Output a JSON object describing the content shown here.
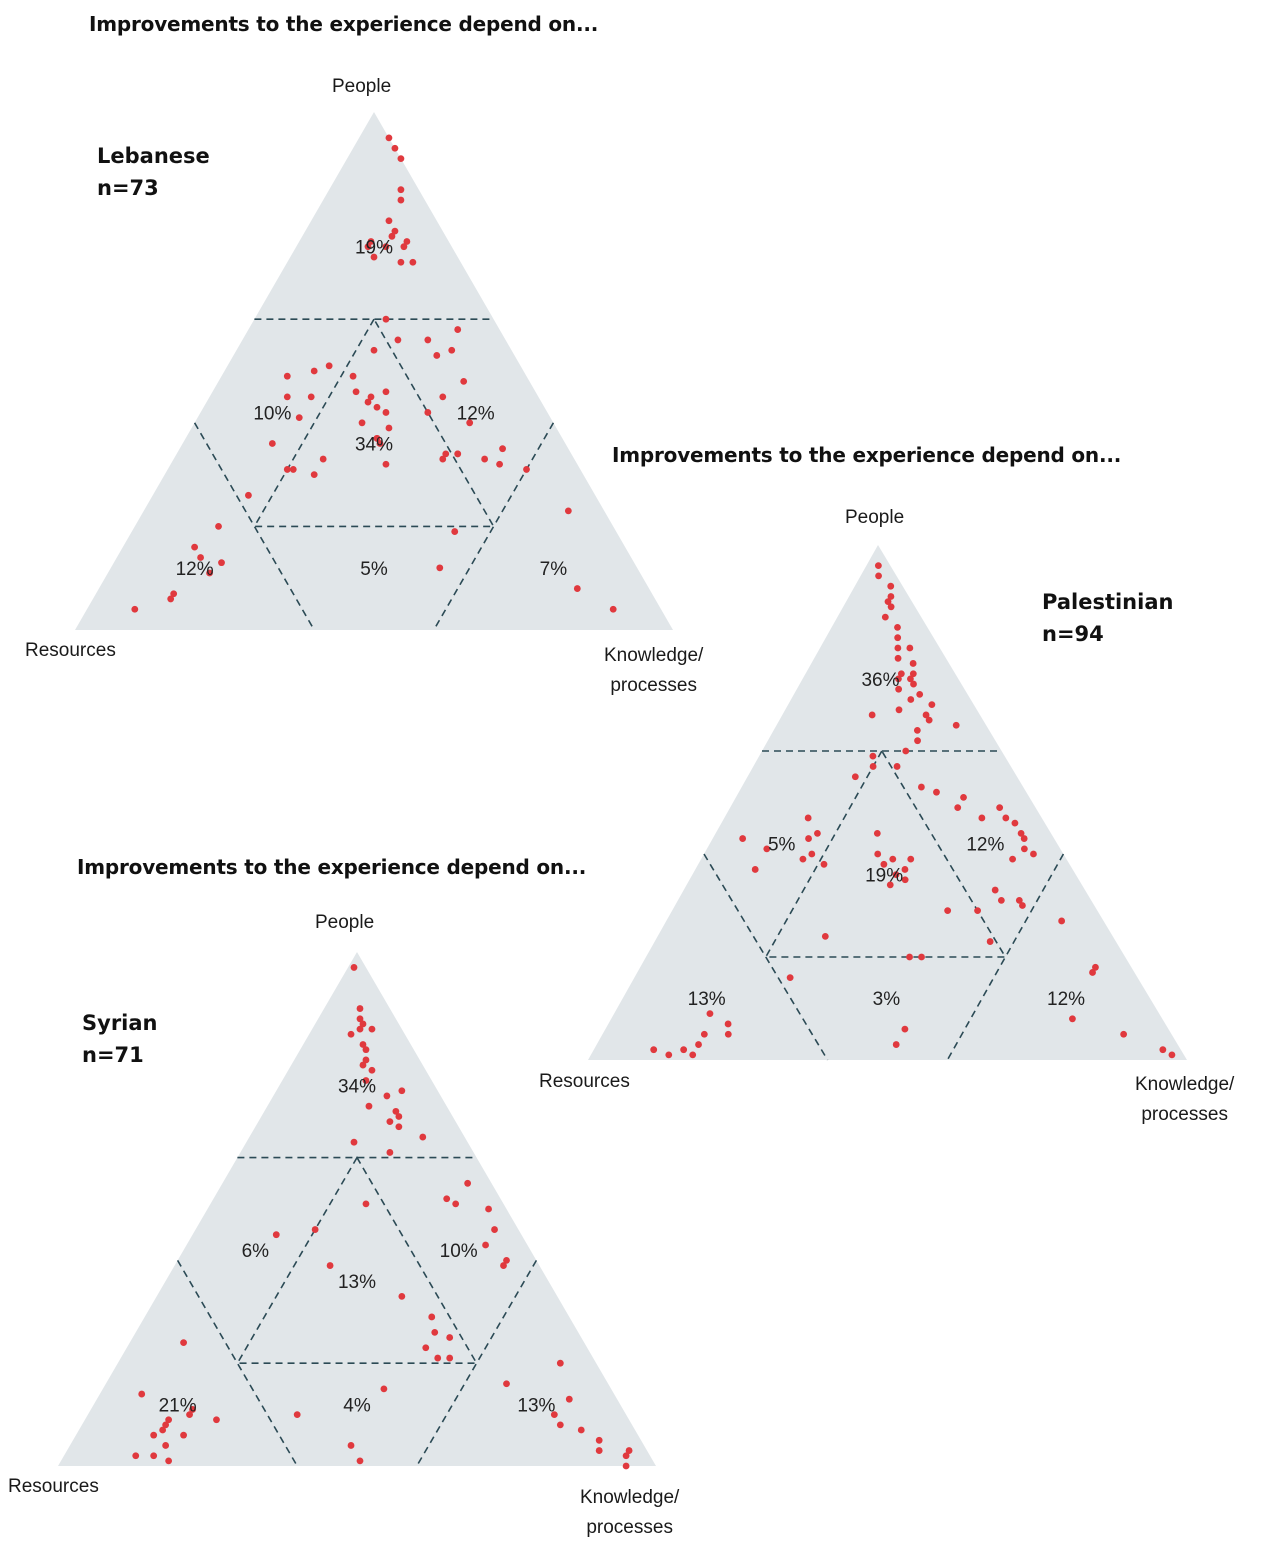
{
  "chart_data": [
    {
      "type": "ternary-scatter",
      "title": "Improvements to the experience depend on...",
      "group": "Lebanese",
      "n_label": "n=73",
      "vertex_labels": {
        "top": "People",
        "left": "Resources",
        "right_line1": "Knowledge/",
        "right_line2": "processes"
      },
      "colors": {
        "triangle": "#e1e6e9",
        "dots": "#e0393e",
        "divider": "#2b4a55"
      },
      "regions": [
        {
          "id": "people",
          "label": "19%"
        },
        {
          "id": "people-resources",
          "label": "10%"
        },
        {
          "id": "people-knowledge",
          "label": "12%"
        },
        {
          "id": "center",
          "label": "34%"
        },
        {
          "id": "resources",
          "label": "12%"
        },
        {
          "id": "resources-knowledge",
          "label": "5%"
        },
        {
          "id": "knowledge",
          "label": "7%"
        }
      ],
      "points": [
        [
          0.95,
          0.0,
          0.05
        ],
        [
          0.91,
          0.0,
          0.09
        ],
        [
          0.93,
          0.0,
          0.07
        ],
        [
          0.85,
          0.03,
          0.12
        ],
        [
          0.83,
          0.04,
          0.13
        ],
        [
          0.79,
          0.08,
          0.13
        ],
        [
          0.77,
          0.08,
          0.15
        ],
        [
          0.76,
          0.09,
          0.15
        ],
        [
          0.74,
          0.11,
          0.15
        ],
        [
          0.75,
          0.07,
          0.18
        ],
        [
          0.74,
          0.08,
          0.18
        ],
        [
          0.71,
          0.1,
          0.19
        ],
        [
          0.71,
          0.08,
          0.21
        ],
        [
          0.72,
          0.14,
          0.14
        ],
        [
          0.75,
          0.13,
          0.12
        ],
        [
          0.74,
          0.14,
          0.12
        ],
        [
          0.6,
          0.18,
          0.22
        ],
        [
          0.56,
          0.18,
          0.26
        ],
        [
          0.54,
          0.23,
          0.23
        ],
        [
          0.49,
          0.29,
          0.22
        ],
        [
          0.46,
          0.3,
          0.24
        ],
        [
          0.45,
          0.28,
          0.27
        ],
        [
          0.46,
          0.25,
          0.29
        ],
        [
          0.43,
          0.28,
          0.29
        ],
        [
          0.42,
          0.27,
          0.31
        ],
        [
          0.44,
          0.29,
          0.27
        ],
        [
          0.4,
          0.32,
          0.28
        ],
        [
          0.39,
          0.28,
          0.33
        ],
        [
          0.37,
          0.31,
          0.32
        ],
        [
          0.36,
          0.31,
          0.33
        ],
        [
          0.32,
          0.32,
          0.36
        ],
        [
          0.49,
          0.4,
          0.11
        ],
        [
          0.5,
          0.35,
          0.15
        ],
        [
          0.45,
          0.42,
          0.13
        ],
        [
          0.41,
          0.42,
          0.17
        ],
        [
          0.36,
          0.49,
          0.15
        ],
        [
          0.31,
          0.49,
          0.2
        ],
        [
          0.31,
          0.48,
          0.21
        ],
        [
          0.3,
          0.45,
          0.25
        ],
        [
          0.33,
          0.42,
          0.25
        ],
        [
          0.26,
          0.58,
          0.16
        ],
        [
          0.2,
          0.66,
          0.14
        ],
        [
          0.16,
          0.72,
          0.12
        ],
        [
          0.14,
          0.72,
          0.14
        ],
        [
          0.13,
          0.69,
          0.18
        ],
        [
          0.11,
          0.72,
          0.17
        ],
        [
          0.07,
          0.8,
          0.13
        ],
        [
          0.06,
          0.81,
          0.13
        ],
        [
          0.04,
          0.88,
          0.08
        ],
        [
          0.53,
          0.13,
          0.34
        ],
        [
          0.56,
          0.13,
          0.31
        ],
        [
          0.54,
          0.1,
          0.36
        ],
        [
          0.58,
          0.07,
          0.35
        ],
        [
          0.48,
          0.11,
          0.41
        ],
        [
          0.45,
          0.16,
          0.39
        ],
        [
          0.42,
          0.2,
          0.38
        ],
        [
          0.34,
          0.19,
          0.47
        ],
        [
          0.33,
          0.15,
          0.52
        ],
        [
          0.32,
          0.13,
          0.55
        ],
        [
          0.35,
          0.11,
          0.54
        ],
        [
          0.34,
          0.21,
          0.45
        ],
        [
          0.34,
          0.19,
          0.47
        ],
        [
          0.4,
          0.14,
          0.46
        ],
        [
          0.33,
          0.22,
          0.45
        ],
        [
          0.31,
          0.09,
          0.6
        ],
        [
          0.19,
          0.27,
          0.54
        ],
        [
          0.23,
          0.06,
          0.71
        ],
        [
          0.08,
          0.12,
          0.8
        ],
        [
          0.04,
          0.08,
          0.88
        ],
        [
          0.12,
          0.33,
          0.55
        ],
        [
          0.37,
          0.31,
          0.32
        ],
        [
          0.45,
          0.38,
          0.17
        ],
        [
          0.51,
          0.32,
          0.17
        ]
      ]
    },
    {
      "type": "ternary-scatter",
      "title": "Improvements to the experience depend on...",
      "group": "Palestinian",
      "n_label": "n=94",
      "vertex_labels": {
        "top": "People",
        "left": "Resources",
        "right_line1": "Knowledge/",
        "right_line2": "processes"
      },
      "colors": {
        "triangle": "#e1e6e9",
        "dots": "#e0393e",
        "divider": "#2b4a55"
      },
      "regions": [
        {
          "id": "people",
          "label": "36%"
        },
        {
          "id": "people-resources",
          "label": "5%"
        },
        {
          "id": "people-knowledge",
          "label": "12%"
        },
        {
          "id": "center",
          "label": "19%"
        },
        {
          "id": "resources",
          "label": "13%"
        },
        {
          "id": "resources-knowledge",
          "label": "3%"
        },
        {
          "id": "knowledge",
          "label": "12%"
        }
      ],
      "points": [
        [
          0.96,
          0.02,
          0.02
        ],
        [
          0.94,
          0.03,
          0.03
        ],
        [
          0.92,
          0.02,
          0.06
        ],
        [
          0.9,
          0.03,
          0.07
        ],
        [
          0.89,
          0.04,
          0.07
        ],
        [
          0.88,
          0.04,
          0.08
        ],
        [
          0.86,
          0.06,
          0.08
        ],
        [
          0.84,
          0.05,
          0.11
        ],
        [
          0.82,
          0.06,
          0.12
        ],
        [
          0.8,
          0.07,
          0.13
        ],
        [
          0.8,
          0.05,
          0.15
        ],
        [
          0.78,
          0.08,
          0.14
        ],
        [
          0.77,
          0.06,
          0.17
        ],
        [
          0.75,
          0.09,
          0.16
        ],
        [
          0.75,
          0.07,
          0.18
        ],
        [
          0.74,
          0.08,
          0.18
        ],
        [
          0.74,
          0.1,
          0.16
        ],
        [
          0.73,
          0.08,
          0.19
        ],
        [
          0.72,
          0.11,
          0.17
        ],
        [
          0.71,
          0.08,
          0.21
        ],
        [
          0.7,
          0.1,
          0.2
        ],
        [
          0.69,
          0.07,
          0.24
        ],
        [
          0.68,
          0.13,
          0.19
        ],
        [
          0.67,
          0.09,
          0.24
        ],
        [
          0.67,
          0.18,
          0.15
        ],
        [
          0.66,
          0.09,
          0.25
        ],
        [
          0.65,
          0.05,
          0.3
        ],
        [
          0.64,
          0.12,
          0.24
        ],
        [
          0.62,
          0.13,
          0.25
        ],
        [
          0.6,
          0.16,
          0.24
        ],
        [
          0.59,
          0.22,
          0.19
        ],
        [
          0.57,
          0.23,
          0.2
        ],
        [
          0.55,
          0.27,
          0.18
        ],
        [
          0.57,
          0.19,
          0.24
        ],
        [
          0.53,
          0.17,
          0.3
        ],
        [
          0.52,
          0.15,
          0.33
        ],
        [
          0.47,
          0.39,
          0.14
        ],
        [
          0.43,
          0.41,
          0.16
        ],
        [
          0.44,
          0.39,
          0.17
        ],
        [
          0.4,
          0.42,
          0.18
        ],
        [
          0.38,
          0.41,
          0.21
        ],
        [
          0.39,
          0.44,
          0.17
        ],
        [
          0.43,
          0.52,
          0.05
        ],
        [
          0.37,
          0.53,
          0.1
        ],
        [
          0.41,
          0.49,
          0.1
        ],
        [
          0.24,
          0.48,
          0.28
        ],
        [
          0.16,
          0.58,
          0.26
        ],
        [
          0.09,
          0.75,
          0.16
        ],
        [
          0.07,
          0.73,
          0.2
        ],
        [
          0.05,
          0.78,
          0.17
        ],
        [
          0.05,
          0.74,
          0.21
        ],
        [
          0.03,
          0.8,
          0.17
        ],
        [
          0.02,
          0.88,
          0.1
        ],
        [
          0.01,
          0.86,
          0.13
        ],
        [
          0.02,
          0.83,
          0.15
        ],
        [
          0.01,
          0.82,
          0.17
        ],
        [
          0.41,
          0.06,
          0.53
        ],
        [
          0.39,
          0.09,
          0.52
        ],
        [
          0.31,
          0.12,
          0.57
        ],
        [
          0.31,
          0.15,
          0.54
        ],
        [
          0.3,
          0.12,
          0.58
        ],
        [
          0.33,
          0.15,
          0.52
        ],
        [
          0.29,
          0.25,
          0.46
        ],
        [
          0.47,
          0.1,
          0.43
        ],
        [
          0.49,
          0.13,
          0.38
        ],
        [
          0.51,
          0.11,
          0.38
        ],
        [
          0.49,
          0.06,
          0.45
        ],
        [
          0.47,
          0.06,
          0.47
        ],
        [
          0.46,
          0.05,
          0.49
        ],
        [
          0.44,
          0.05,
          0.51
        ],
        [
          0.43,
          0.05,
          0.52
        ],
        [
          0.4,
          0.05,
          0.55
        ],
        [
          0.27,
          0.07,
          0.66
        ],
        [
          0.17,
          0.07,
          0.76
        ],
        [
          0.18,
          0.06,
          0.76
        ],
        [
          0.08,
          0.15,
          0.77
        ],
        [
          0.05,
          0.08,
          0.87
        ],
        [
          0.02,
          0.03,
          0.95
        ],
        [
          0.01,
          0.02,
          0.97
        ],
        [
          0.06,
          0.44,
          0.5
        ],
        [
          0.03,
          0.47,
          0.5
        ],
        [
          0.2,
          0.36,
          0.44
        ],
        [
          0.2,
          0.34,
          0.46
        ],
        [
          0.34,
          0.32,
          0.34
        ],
        [
          0.36,
          0.3,
          0.34
        ],
        [
          0.38,
          0.31,
          0.31
        ],
        [
          0.37,
          0.28,
          0.35
        ],
        [
          0.35,
          0.29,
          0.36
        ],
        [
          0.4,
          0.31,
          0.29
        ],
        [
          0.39,
          0.26,
          0.35
        ],
        [
          0.44,
          0.29,
          0.27
        ],
        [
          0.39,
          0.29,
          0.32
        ],
        [
          0.29,
          0.2,
          0.51
        ],
        [
          0.23,
          0.21,
          0.56
        ]
      ]
    },
    {
      "type": "ternary-scatter",
      "title": "Improvements to the experience depend on...",
      "group": "Syrian",
      "n_label": "n=71",
      "vertex_labels": {
        "top": "People",
        "left": "Resources",
        "right_line1": "Knowledge/",
        "right_line2": "processes"
      },
      "colors": {
        "triangle": "#e1e6e9",
        "dots": "#e0393e",
        "divider": "#2b4a55"
      },
      "regions": [
        {
          "id": "people",
          "label": "34%"
        },
        {
          "id": "people-resources",
          "label": "6%"
        },
        {
          "id": "people-knowledge",
          "label": "10%"
        },
        {
          "id": "center",
          "label": "13%"
        },
        {
          "id": "resources",
          "label": "21%"
        },
        {
          "id": "resources-knowledge",
          "label": "4%"
        },
        {
          "id": "knowledge",
          "label": "13%"
        }
      ],
      "points": [
        [
          0.97,
          0.02,
          0.01
        ],
        [
          0.89,
          0.05,
          0.06
        ],
        [
          0.87,
          0.06,
          0.07
        ],
        [
          0.86,
          0.06,
          0.08
        ],
        [
          0.85,
          0.05,
          0.1
        ],
        [
          0.85,
          0.07,
          0.08
        ],
        [
          0.84,
          0.09,
          0.07
        ],
        [
          0.82,
          0.08,
          0.1
        ],
        [
          0.81,
          0.08,
          0.11
        ],
        [
          0.79,
          0.09,
          0.12
        ],
        [
          0.78,
          0.1,
          0.12
        ],
        [
          0.77,
          0.09,
          0.14
        ],
        [
          0.75,
          0.11,
          0.14
        ],
        [
          0.73,
          0.06,
          0.21
        ],
        [
          0.72,
          0.09,
          0.19
        ],
        [
          0.7,
          0.13,
          0.17
        ],
        [
          0.69,
          0.09,
          0.22
        ],
        [
          0.68,
          0.09,
          0.23
        ],
        [
          0.67,
          0.11,
          0.22
        ],
        [
          0.66,
          0.1,
          0.24
        ],
        [
          0.64,
          0.07,
          0.29
        ],
        [
          0.63,
          0.19,
          0.18
        ],
        [
          0.61,
          0.14,
          0.25
        ],
        [
          0.51,
          0.23,
          0.26
        ],
        [
          0.46,
          0.34,
          0.2
        ],
        [
          0.45,
          0.41,
          0.14
        ],
        [
          0.39,
          0.35,
          0.26
        ],
        [
          0.33,
          0.26,
          0.41
        ],
        [
          0.29,
          0.23,
          0.48
        ],
        [
          0.26,
          0.24,
          0.5
        ],
        [
          0.25,
          0.22,
          0.53
        ],
        [
          0.23,
          0.27,
          0.5
        ],
        [
          0.21,
          0.24,
          0.55
        ],
        [
          0.21,
          0.26,
          0.53
        ],
        [
          0.15,
          0.38,
          0.47
        ],
        [
          0.24,
          0.67,
          0.09
        ],
        [
          0.14,
          0.79,
          0.07
        ],
        [
          0.11,
          0.72,
          0.17
        ],
        [
          0.1,
          0.73,
          0.17
        ],
        [
          0.09,
          0.77,
          0.14
        ],
        [
          0.09,
          0.69,
          0.22
        ],
        [
          0.08,
          0.78,
          0.14
        ],
        [
          0.07,
          0.79,
          0.14
        ],
        [
          0.06,
          0.76,
          0.18
        ],
        [
          0.06,
          0.81,
          0.13
        ],
        [
          0.04,
          0.8,
          0.16
        ],
        [
          0.02,
          0.86,
          0.12
        ],
        [
          0.02,
          0.83,
          0.15
        ],
        [
          0.01,
          0.81,
          0.18
        ],
        [
          0.1,
          0.55,
          0.35
        ],
        [
          0.04,
          0.49,
          0.47
        ],
        [
          0.01,
          0.49,
          0.5
        ],
        [
          0.51,
          0.08,
          0.41
        ],
        [
          0.52,
          0.09,
          0.39
        ],
        [
          0.55,
          0.04,
          0.41
        ],
        [
          0.5,
          0.03,
          0.47
        ],
        [
          0.46,
          0.04,
          0.5
        ],
        [
          0.4,
          0.05,
          0.55
        ],
        [
          0.39,
          0.06,
          0.55
        ],
        [
          0.43,
          0.07,
          0.5
        ],
        [
          0.2,
          0.06,
          0.74
        ],
        [
          0.13,
          0.08,
          0.79
        ],
        [
          0.1,
          0.12,
          0.78
        ],
        [
          0.08,
          0.12,
          0.8
        ],
        [
          0.07,
          0.09,
          0.84
        ],
        [
          0.05,
          0.07,
          0.88
        ],
        [
          0.03,
          0.08,
          0.89
        ],
        [
          0.02,
          0.04,
          0.94
        ],
        [
          0.03,
          0.03,
          0.94
        ],
        [
          0.16,
          0.17,
          0.67
        ],
        [
          0.0,
          0.05,
          0.95
        ]
      ]
    }
  ]
}
